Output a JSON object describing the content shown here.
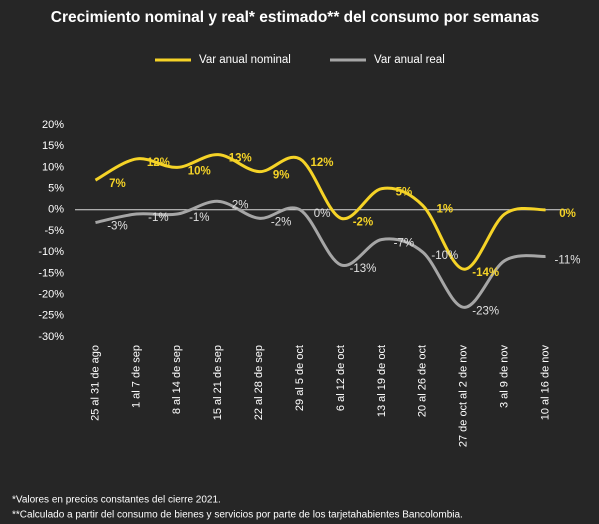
{
  "chart_data": {
    "type": "line",
    "title": "Crecimiento nominal y real* estimado** del consumo por semanas",
    "categories": [
      "25 al 31 de ago",
      "1 al 7 de sep",
      "8 al 14 de sep",
      "15 al 21 de sep",
      "22 al 28 de sep",
      "29 al 5 de oct",
      "6 al 12 de oct",
      "13 al 19 de oct",
      "20 al 26 de oct",
      "27 de oct al 2 de nov",
      "3 al 9 de nov",
      "10 al 16 de nov"
    ],
    "series": [
      {
        "name": "Var anual nominal",
        "color": "#f5d327",
        "values": [
          7,
          12,
          10,
          13,
          9,
          12,
          -2,
          5,
          1,
          -14,
          -1,
          0
        ],
        "value_labels": [
          "7%",
          "12%",
          "10%",
          "13%",
          "9%",
          "12%",
          "-2%",
          "5%",
          "1%",
          "-14%",
          null,
          "0%"
        ]
      },
      {
        "name": "Var anual real",
        "color": "#a6a6a6",
        "values": [
          -3,
          -1,
          -1,
          2,
          -2,
          0,
          -13,
          -7,
          -10,
          -23,
          -12,
          -11
        ],
        "value_labels": [
          "-3%",
          "-1%",
          "-1%",
          "2%",
          "-2%",
          "0%",
          "-13%",
          "-7%",
          "-10%",
          "-23%",
          null,
          "-11%"
        ]
      }
    ],
    "ylim": [
      -30,
      20
    ],
    "yticks": [
      {
        "value": -30,
        "label": "-30%"
      },
      {
        "value": -25,
        "label": "-25%"
      },
      {
        "value": -20,
        "label": "-20%"
      },
      {
        "value": -15,
        "label": "-15%"
      },
      {
        "value": -10,
        "label": "-10%"
      },
      {
        "value": -5,
        "label": "-5%"
      },
      {
        "value": 0,
        "label": "0%"
      },
      {
        "value": 5,
        "label": "5%"
      },
      {
        "value": 10,
        "label": "10%"
      },
      {
        "value": 15,
        "label": "15%"
      },
      {
        "value": 20,
        "label": "20%"
      }
    ],
    "legend": "top",
    "footnotes": [
      "*Valores en precios constantes del cierre 2021.",
      "**Calculado a partir del consumo de bienes y servicios por parte de los tarjetahabientes Bancolombia."
    ]
  }
}
